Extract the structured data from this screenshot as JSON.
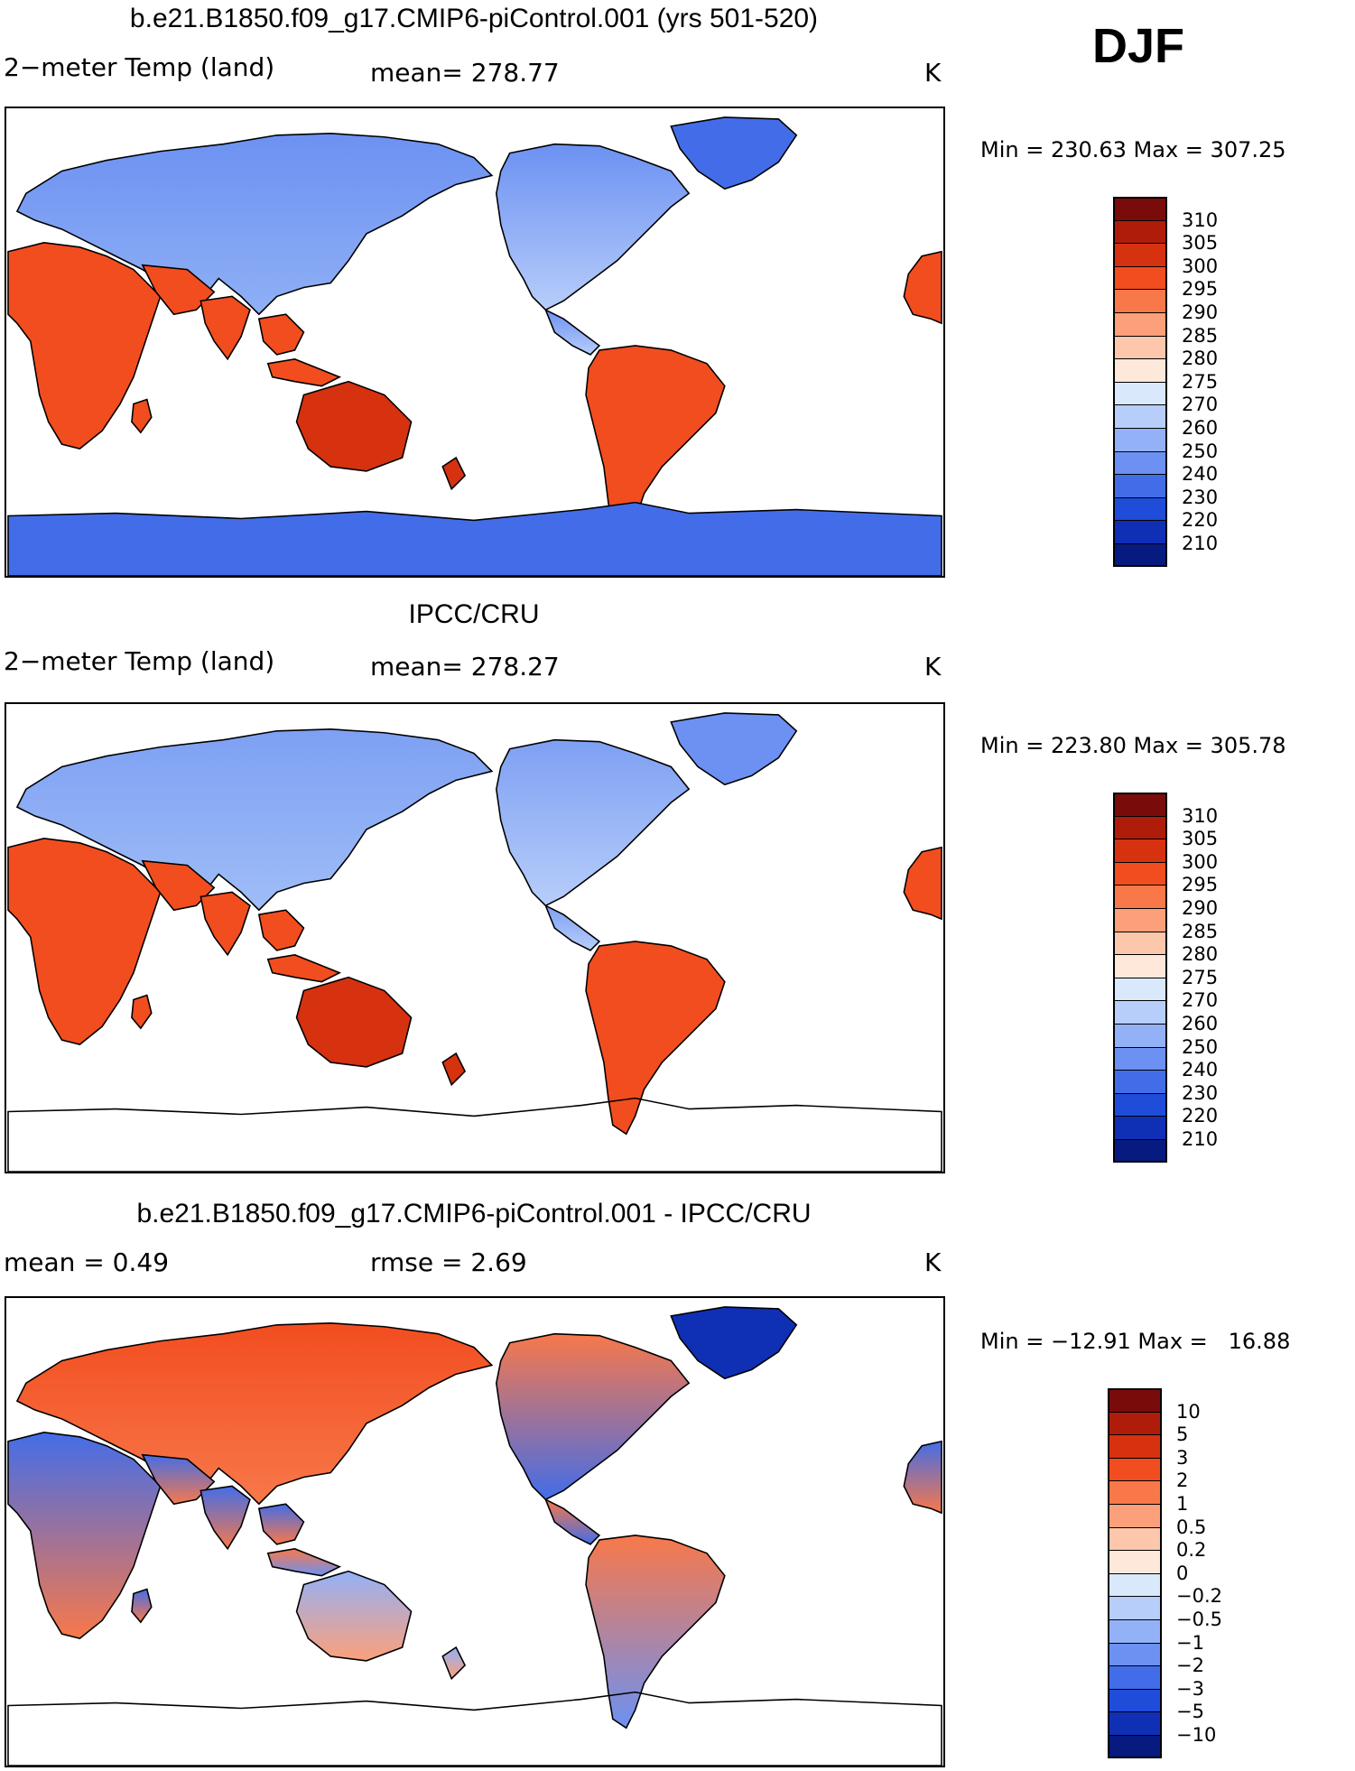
{
  "season": "DJF",
  "panels": [
    {
      "title": "b.e21.B1850.f09_g17.CMIP6-piControl.001 (yrs 501-520)",
      "left_label": "2−meter Temp (land)",
      "mid_label": "mean= 278.77",
      "units": "K",
      "minmax": "Min = 230.63 Max = 307.25",
      "colorbar": "abs"
    },
    {
      "title": "IPCC/CRU",
      "left_label": "2−meter Temp (land)",
      "mid_label": "mean= 278.27",
      "units": "K",
      "minmax": "Min = 223.80 Max = 305.78",
      "colorbar": "abs"
    },
    {
      "title": "b.e21.B1850.f09_g17.CMIP6-piControl.001 - IPCC/CRU",
      "left_label": "mean =    0.49",
      "mid_label": "rmse =    2.69",
      "units": "K",
      "minmax": "Min = −12.91 Max =   16.88",
      "colorbar": "diff"
    }
  ],
  "colorbars": {
    "abs": {
      "colors": [
        "#7a0b0b",
        "#b01c0a",
        "#d63210",
        "#f24d1f",
        "#f8784a",
        "#fba07a",
        "#fdc7ab",
        "#fde8da",
        "#d9e8fb",
        "#b7cdfa",
        "#93b1f7",
        "#6c91f2",
        "#436de8",
        "#1f4cd8",
        "#0f2fb5",
        "#061a80"
      ],
      "labels": [
        "310",
        "305",
        "300",
        "295",
        "290",
        "285",
        "280",
        "275",
        "270",
        "260",
        "250",
        "240",
        "230",
        "220",
        "210"
      ]
    },
    "diff": {
      "colors": [
        "#7a0b0b",
        "#b01c0a",
        "#d63210",
        "#f24d1f",
        "#f8784a",
        "#fba07a",
        "#fdc7ab",
        "#fde8da",
        "#d9e8fb",
        "#b7cdfa",
        "#93b1f7",
        "#6c91f2",
        "#436de8",
        "#1f4cd8",
        "#0f2fb5",
        "#061a80"
      ],
      "labels": [
        "10",
        "5",
        "3",
        "2",
        "1",
        "0.5",
        "0.2",
        "0",
        "−0.2",
        "−0.5",
        "−1",
        "−2",
        "−3",
        "−5",
        "−10"
      ]
    }
  },
  "map_regions": [
    {
      "name": "eurasia",
      "abs": [
        "#6c91f2",
        "#8fb0f5"
      ],
      "obs": [
        "#7ea0f3",
        "#9fbdf7"
      ],
      "diff": [
        "#f24d1f",
        "#f8784a"
      ]
    },
    {
      "name": "north-america",
      "abs": [
        "#6c91f2",
        "#b7cdfa"
      ],
      "obs": [
        "#7ea0f3",
        "#b7cdfa"
      ],
      "diff": [
        "#f8784a",
        "#436de8"
      ]
    },
    {
      "name": "greenland",
      "abs": [
        "#436de8"
      ],
      "obs": [
        "#6c91f2"
      ],
      "diff": [
        "#0f2fb5"
      ]
    },
    {
      "name": "africa",
      "abs": [
        "#f24d1f"
      ],
      "obs": [
        "#f24d1f"
      ],
      "diff": [
        "#436de8",
        "#f8784a"
      ]
    },
    {
      "name": "south-america",
      "abs": [
        "#f24d1f"
      ],
      "obs": [
        "#f24d1f"
      ],
      "diff": [
        "#f8784a",
        "#6c91f2"
      ]
    },
    {
      "name": "australia",
      "abs": [
        "#d63210"
      ],
      "obs": [
        "#d63210"
      ],
      "diff": [
        "#93b1f7",
        "#fba07a"
      ]
    },
    {
      "name": "antarctica",
      "abs": [
        "#436de8"
      ],
      "obs": [],
      "diff": []
    }
  ]
}
